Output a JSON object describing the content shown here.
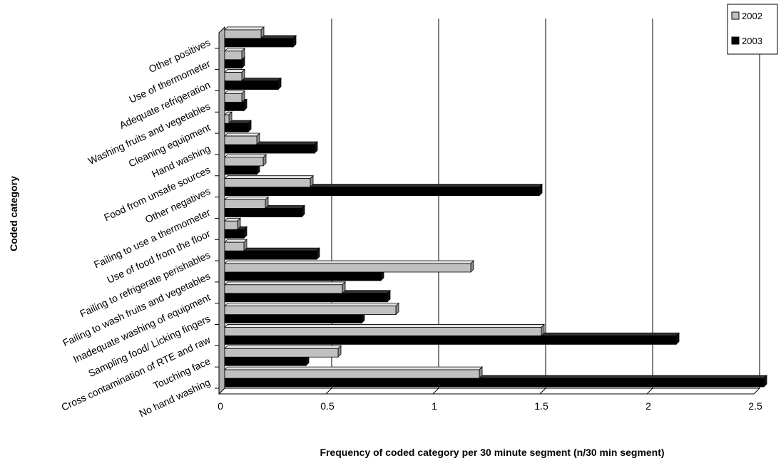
{
  "chart_data": {
    "type": "bar",
    "orientation": "horizontal",
    "style": "3d",
    "categories": [
      "No hand washing",
      "Touching face",
      "Cross contamination of RTE and raw",
      "Sampling food/ Licking fingers",
      "Inadequate washing of equipment",
      "Failing to wash fruits and vegetables",
      "Failing to refrigerate perishables",
      "Use of food from the floor",
      "Failing to use a thermometer",
      "Other negatives",
      "Food from unsafe sources",
      "Hand washing",
      "Cleaning equipment",
      "Washing fruits and vegetables",
      "Adequate refrigeration",
      "Use of thermometer",
      "Other positives"
    ],
    "series": [
      {
        "name": "2002",
        "color": "#c0c0c0",
        "values": [
          1.19,
          0.53,
          1.48,
          0.8,
          0.55,
          1.15,
          0.09,
          0.06,
          0.19,
          0.4,
          0.18,
          0.15,
          0.02,
          0.08,
          0.08,
          0.08,
          0.17
        ]
      },
      {
        "name": "2003",
        "color": "#000000",
        "values": [
          2.52,
          0.38,
          2.11,
          0.64,
          0.76,
          0.73,
          0.43,
          0.09,
          0.36,
          1.47,
          0.15,
          0.42,
          0.11,
          0.09,
          0.25,
          0.08,
          0.32
        ]
      }
    ],
    "xlabel": "Frequency of coded category per 30 minute segment (n/30 min segment)",
    "ylabel": "Coded category",
    "xlim": [
      0,
      2.5
    ],
    "xticks": [
      "0",
      "0.5",
      "1",
      "1.5",
      "2",
      "2.5"
    ],
    "grid": true,
    "legend_position": "top-right"
  }
}
